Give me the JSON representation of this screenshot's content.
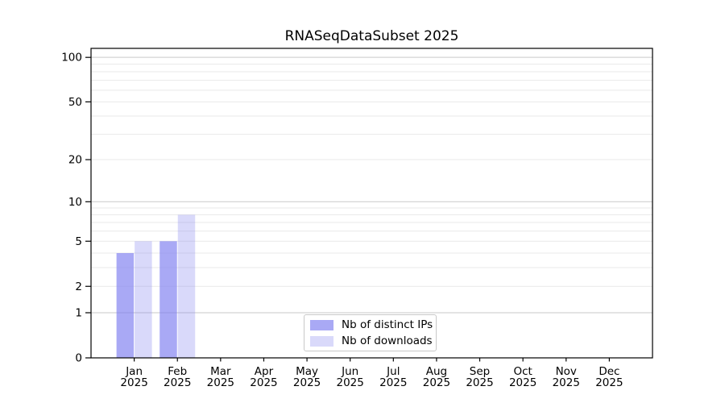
{
  "chart_data": {
    "type": "bar",
    "title": "RNASeqDataSubset 2025",
    "categories": [
      "Jan",
      "Feb",
      "Mar",
      "Apr",
      "May",
      "Jun",
      "Jul",
      "Aug",
      "Sep",
      "Oct",
      "Nov",
      "Dec"
    ],
    "category_sub_label": "2025",
    "series": [
      {
        "name": "Nb of distinct IPs",
        "color": "#8282f0",
        "alpha": 0.69,
        "swatch_color": "#a9a9f4",
        "values": [
          4,
          5,
          0,
          0,
          0,
          0,
          0,
          0,
          0,
          0,
          0,
          0
        ]
      },
      {
        "name": "Nb of downloads",
        "color": "#8282f0",
        "alpha": 0.3,
        "swatch_color": "#d9d9fa",
        "values": [
          5,
          8,
          0,
          0,
          0,
          0,
          0,
          0,
          0,
          0,
          0,
          0
        ]
      }
    ],
    "yscale": "log1p",
    "ylim": [
      0,
      115
    ],
    "xlim_units": [
      -1,
      12
    ],
    "yticks": [
      0,
      1,
      2,
      5,
      10,
      20,
      50,
      100
    ],
    "gridlines": {
      "major": [
        1,
        10,
        100
      ],
      "minor": [
        2,
        3,
        4,
        5,
        6,
        7,
        8,
        9,
        20,
        30,
        40,
        50,
        60,
        70,
        80,
        90
      ],
      "major_color": "#c9c9c9",
      "minor_color": "#e9e9e9"
    },
    "legend_position": "lower center",
    "axis_color": "#000000",
    "background_color": "#ffffff",
    "grid_on": true
  }
}
